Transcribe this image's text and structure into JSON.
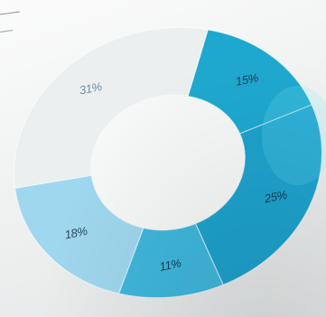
{
  "chart_data": {
    "type": "pie",
    "donut": true,
    "slices": [
      {
        "label": "15%",
        "value": 15,
        "color": "#1fa8cf",
        "text_color": "#1a3e56"
      },
      {
        "label": "25%",
        "value": 25,
        "color": "#1ea2cc",
        "text_color": "#123a55"
      },
      {
        "label": "11%",
        "value": 11,
        "color": "#3fb7dc",
        "text_color": "#173f57"
      },
      {
        "label": "18%",
        "value": 18,
        "color": "#9fd7ee",
        "text_color": "#2a4a5e"
      },
      {
        "label": "31%",
        "value": 31,
        "color": "#ecefef",
        "text_color": "#6f8fa4"
      }
    ]
  }
}
